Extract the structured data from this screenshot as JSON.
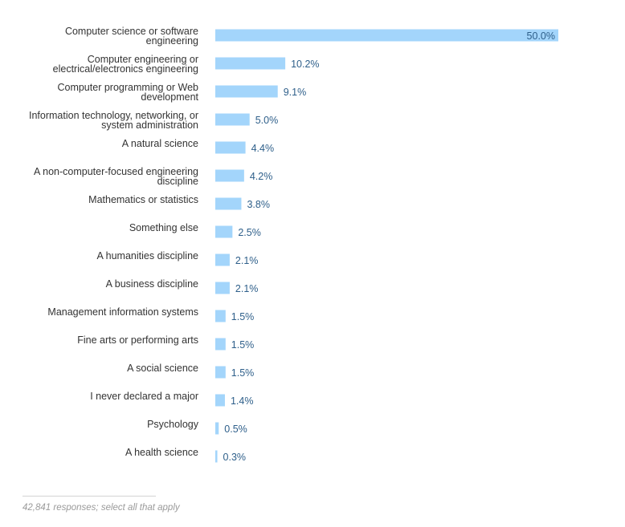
{
  "chart_data": {
    "type": "bar",
    "orientation": "horizontal",
    "value_suffix": "%",
    "xlim": [
      0,
      50
    ],
    "grid": false,
    "legend": "none",
    "categories": [
      "Computer science or software engineering",
      "Computer engineering or electrical/electronics engineering",
      "Computer programming or Web development",
      "Information technology, networking, or system administration",
      "A natural science",
      "A non-computer-focused engineering discipline",
      "Mathematics or statistics",
      "Something else",
      "A humanities discipline",
      "A business discipline",
      "Management information systems",
      "Fine arts or performing arts",
      "A social science",
      "I never declared a major",
      "Psychology",
      "A health science"
    ],
    "category_lines": [
      [
        "Computer science or software",
        "engineering"
      ],
      [
        "Computer engineering or",
        "electrical/electronics engineering"
      ],
      [
        "Computer programming or Web",
        "development"
      ],
      [
        "Information technology, networking, or",
        "system administration"
      ],
      [
        "A natural science"
      ],
      [
        "A non-computer-focused engineering",
        "discipline"
      ],
      [
        "Mathematics or statistics"
      ],
      [
        "Something else"
      ],
      [
        "A humanities discipline"
      ],
      [
        "A business discipline"
      ],
      [
        "Management information systems"
      ],
      [
        "Fine arts or performing arts"
      ],
      [
        "A social science"
      ],
      [
        "I never declared a major"
      ],
      [
        "Psychology"
      ],
      [
        "A health science"
      ]
    ],
    "values": [
      50.0,
      10.2,
      9.1,
      5.0,
      4.4,
      4.2,
      3.8,
      2.5,
      2.1,
      2.1,
      1.5,
      1.5,
      1.5,
      1.4,
      0.5,
      0.3
    ],
    "value_labels": [
      "50.0%",
      "10.2%",
      "9.1%",
      "5.0%",
      "4.4%",
      "4.2%",
      "3.8%",
      "2.5%",
      "2.1%",
      "2.1%",
      "1.5%",
      "1.5%",
      "1.5%",
      "1.4%",
      "0.5%",
      "0.3%"
    ],
    "colors": {
      "bar": "#a3d5fb",
      "value_label": "#2e5f8a",
      "category_label": "#333333"
    }
  },
  "footer": {
    "note": "42,841 responses; select all that apply"
  }
}
